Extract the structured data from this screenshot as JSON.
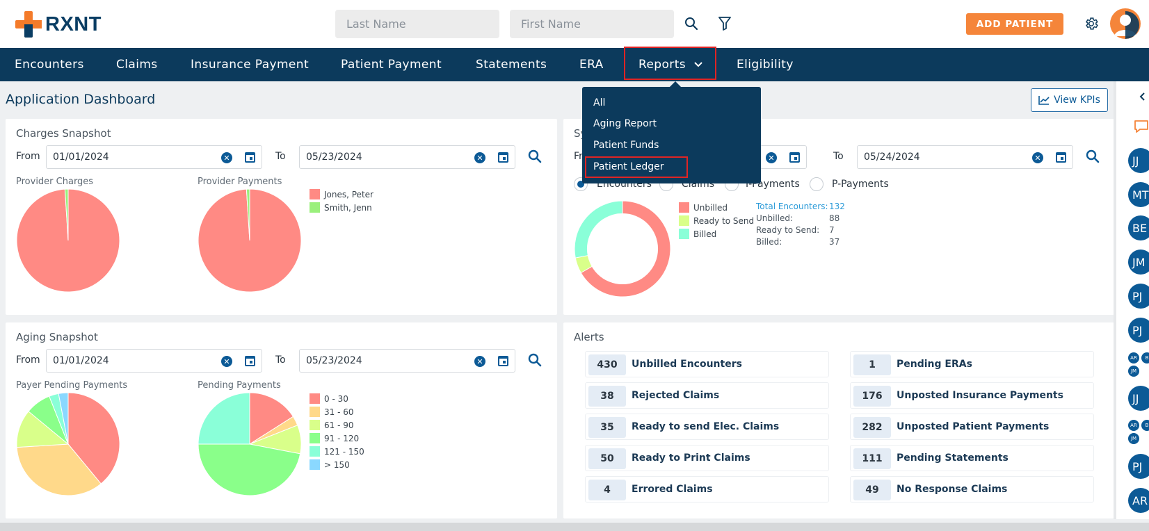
{
  "brand": {
    "name": "RXNT"
  },
  "header": {
    "last_name_placeholder": "Last Name",
    "first_name_placeholder": "First Name",
    "add_patient_label": "ADD PATIENT"
  },
  "nav": {
    "items": [
      {
        "label": "Encounters"
      },
      {
        "label": "Claims"
      },
      {
        "label": "Insurance Payment"
      },
      {
        "label": "Patient Payment"
      },
      {
        "label": "Statements"
      },
      {
        "label": "ERA"
      },
      {
        "label": "Reports"
      },
      {
        "label": "Eligibility"
      }
    ]
  },
  "reports_menu": {
    "items": [
      "All",
      "Aging Report",
      "Patient Funds",
      "Patient Ledger"
    ],
    "selected": "Patient Ledger"
  },
  "dashboard": {
    "title": "Application Dashboard",
    "view_kpis_label": "View KPIs"
  },
  "charges_snapshot": {
    "title": "Charges Snapshot",
    "from_label": "From",
    "from_value": "01/01/2024",
    "to_label": "To",
    "to_value": "05/23/2024",
    "chart1_label": "Provider Charges",
    "chart2_label": "Provider Payments",
    "legend": [
      "Jones, Peter",
      "Smith, Jenn"
    ]
  },
  "summary_snapshot": {
    "title": "Sy",
    "from_label": "Fr",
    "to_label": "To",
    "to_value": "05/24/2024",
    "radios": [
      "Encounters",
      "Claims",
      "I-Payments",
      "P-Payments"
    ],
    "legend": [
      "Unbilled",
      "Ready to Send",
      "Billed"
    ],
    "stats": [
      {
        "k": "Total Encounters:",
        "v": "132"
      },
      {
        "k": "Unbilled:",
        "v": "88"
      },
      {
        "k": "Ready to Send:",
        "v": "7"
      },
      {
        "k": "Billed:",
        "v": "37"
      }
    ]
  },
  "aging_snapshot": {
    "title": "Aging Snapshot",
    "from_label": "From",
    "from_value": "01/01/2024",
    "to_label": "To",
    "to_value": "05/23/2024",
    "chart1_label": "Payer Pending Payments",
    "chart2_label": "Pending Payments",
    "legend": [
      "0 - 30",
      "31 - 60",
      "61 - 90",
      "91 - 120",
      "121 - 150",
      "> 150"
    ]
  },
  "alerts": {
    "title": "Alerts",
    "left": [
      {
        "num": "430",
        "text": "Unbilled Encounters"
      },
      {
        "num": "38",
        "text": "Rejected Claims"
      },
      {
        "num": "35",
        "text": "Ready to send Elec. Claims"
      },
      {
        "num": "50",
        "text": "Ready to Print Claims"
      },
      {
        "num": "4",
        "text": "Errored Claims"
      }
    ],
    "right": [
      {
        "num": "1",
        "text": "Pending ERAs"
      },
      {
        "num": "176",
        "text": "Unposted Insurance Payments"
      },
      {
        "num": "282",
        "text": "Unposted Patient Payments"
      },
      {
        "num": "111",
        "text": "Pending Statements"
      },
      {
        "num": "49",
        "text": "No Response Claims"
      }
    ]
  },
  "rail": {
    "avatars": [
      "JJ",
      "MT",
      "BE",
      "JM",
      "PJ",
      "PJ",
      "JJ",
      "PJ",
      "AR"
    ],
    "minis": [
      "AR",
      "B",
      "JM",
      "AR",
      "B",
      "JM"
    ]
  },
  "chart_data": [
    {
      "type": "pie",
      "title": "Provider Charges",
      "categories": [
        "Jones, Peter",
        "Smith, Jenn"
      ],
      "values": [
        99,
        1
      ],
      "colors": [
        "#ff8a84",
        "#9af07c"
      ]
    },
    {
      "type": "pie",
      "title": "Provider Payments",
      "categories": [
        "Jones, Peter",
        "Smith, Jenn"
      ],
      "values": [
        99,
        1
      ],
      "colors": [
        "#ff8a84",
        "#9af07c"
      ]
    },
    {
      "type": "pie",
      "title": "Encounters",
      "donut": true,
      "categories": [
        "Unbilled",
        "Ready to Send",
        "Billed"
      ],
      "values": [
        88,
        7,
        37
      ],
      "colors": [
        "#ff8a84",
        "#d9ff8a",
        "#8affd8"
      ]
    },
    {
      "type": "pie",
      "title": "Payer Pending Payments",
      "categories": [
        "0 - 30",
        "31 - 60",
        "61 - 90",
        "91 - 120",
        "121 - 150",
        "> 150"
      ],
      "values": [
        39,
        35,
        12,
        8,
        3,
        3
      ],
      "colors": [
        "#ff8a84",
        "#ffd98a",
        "#d9ff8a",
        "#8aff8a",
        "#8affd8",
        "#8ad8ff"
      ]
    },
    {
      "type": "pie",
      "title": "Pending Payments",
      "categories": [
        "0 - 30",
        "31 - 60",
        "61 - 90",
        "91 - 120",
        "121 - 150",
        "> 150"
      ],
      "values": [
        16,
        3,
        9,
        47,
        25,
        0
      ],
      "colors": [
        "#ff8a84",
        "#ffd98a",
        "#d9ff8a",
        "#8aff8a",
        "#8affd8",
        "#8ad8ff"
      ]
    }
  ]
}
